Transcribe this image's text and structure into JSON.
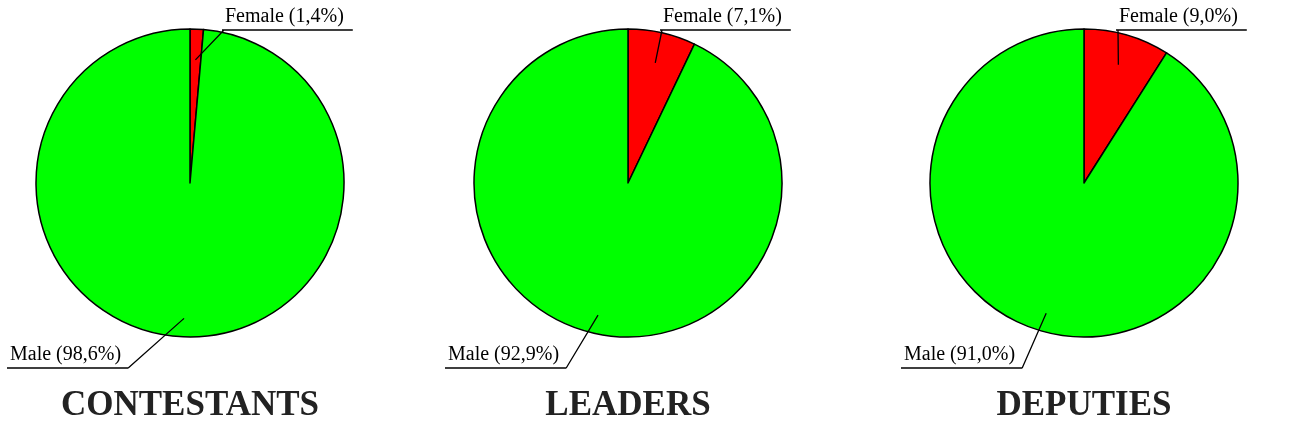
{
  "chart_data": [
    {
      "type": "pie",
      "title": "CONTESTANTS",
      "categories": [
        "Female (1,4%)",
        "Male (98,6%)"
      ],
      "values": [
        1.4,
        98.6
      ],
      "colors": [
        "#ff0000",
        "#00ff00"
      ]
    },
    {
      "type": "pie",
      "title": "LEADERS",
      "categories": [
        "Female (7,1%)",
        "Male (92,9%)"
      ],
      "values": [
        7.1,
        92.9
      ],
      "colors": [
        "#ff0000",
        "#00ff00"
      ]
    },
    {
      "type": "pie",
      "title": "DEPUTIES",
      "categories": [
        "Female (9,0%)",
        "Male (91,0%)"
      ],
      "values": [
        9.0,
        91.0
      ],
      "colors": [
        "#ff0000",
        "#00ff00"
      ]
    }
  ]
}
